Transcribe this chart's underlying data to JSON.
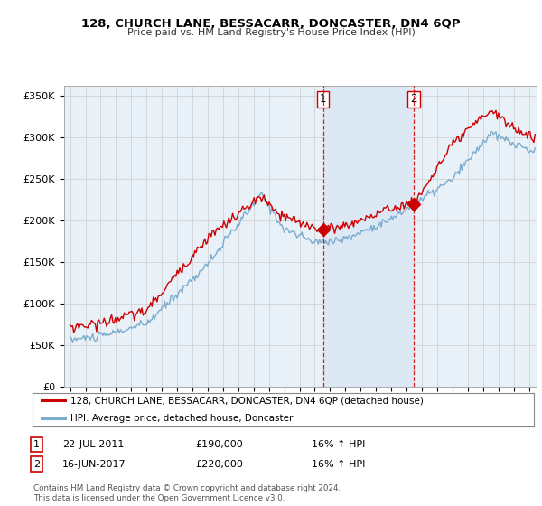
{
  "title1": "128, CHURCH LANE, BESSACARR, DONCASTER, DN4 6QP",
  "title2": "Price paid vs. HM Land Registry's House Price Index (HPI)",
  "ylabel_ticks": [
    "£0",
    "£50K",
    "£100K",
    "£150K",
    "£200K",
    "£250K",
    "£300K",
    "£350K"
  ],
  "ytick_values": [
    0,
    50000,
    100000,
    150000,
    200000,
    250000,
    300000,
    350000
  ],
  "ylim": [
    0,
    362000
  ],
  "xlim_start": 1994.6,
  "xlim_end": 2025.5,
  "legend_line1": "128, CHURCH LANE, BESSACARR, DONCASTER, DN4 6QP (detached house)",
  "legend_line2": "HPI: Average price, detached house, Doncaster",
  "note1_label": "1",
  "note1_date": "22-JUL-2011",
  "note1_price": "£190,000",
  "note1_hpi": "16% ↑ HPI",
  "note2_label": "2",
  "note2_date": "16-JUN-2017",
  "note2_price": "£220,000",
  "note2_hpi": "16% ↑ HPI",
  "footer": "Contains HM Land Registry data © Crown copyright and database right 2024.\nThis data is licensed under the Open Government Licence v3.0.",
  "line_color_red": "#cc0000",
  "line_color_blue": "#7aacce",
  "shade_color": "#dde8f5",
  "bg_color": "#e8f0f8",
  "marker1_x": 2011.55,
  "marker1_y": 190000,
  "marker2_x": 2017.46,
  "marker2_y": 220000,
  "vline1_x": 2011.55,
  "vline2_x": 2017.46
}
